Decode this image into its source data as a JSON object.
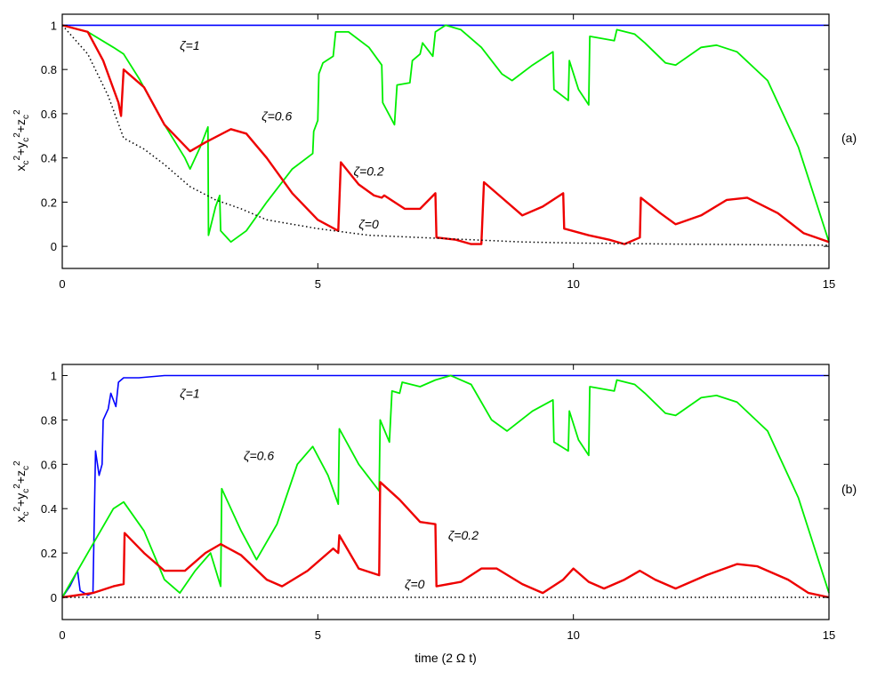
{
  "chart_data": [
    {
      "panel": "(a)",
      "type": "line",
      "xlabel": "",
      "ylabel": "x_c^2+y_c^2+z_c^2",
      "xlim": [
        0,
        15
      ],
      "ylim": [
        -0.1,
        1.05
      ],
      "xticks": [
        "0",
        "5",
        "10",
        "15"
      ],
      "yticks": [
        "0",
        "0.2",
        "0.4",
        "0.6",
        "0.8",
        "1"
      ],
      "grid": false,
      "series": [
        {
          "name": "ζ=1",
          "color": "#0000ff",
          "style": "solid",
          "points": [
            [
              0,
              1
            ],
            [
              15,
              1
            ]
          ]
        },
        {
          "name": "ζ=0.6",
          "color": "#00ee00",
          "style": "solid",
          "points": [
            [
              0,
              1
            ],
            [
              0.5,
              0.97
            ],
            [
              1,
              0.9
            ],
            [
              1.2,
              0.87
            ],
            [
              1.5,
              0.76
            ],
            [
              2,
              0.55
            ],
            [
              2.4,
              0.4
            ],
            [
              2.5,
              0.35
            ],
            [
              2.7,
              0.45
            ],
            [
              2.85,
              0.54
            ],
            [
              2.86,
              0.05
            ],
            [
              3.0,
              0.18
            ],
            [
              3.08,
              0.23
            ],
            [
              3.1,
              0.07
            ],
            [
              3.3,
              0.02
            ],
            [
              3.6,
              0.07
            ],
            [
              4,
              0.2
            ],
            [
              4.5,
              0.35
            ],
            [
              4.9,
              0.42
            ],
            [
              4.92,
              0.52
            ],
            [
              5.0,
              0.57
            ],
            [
              5.02,
              0.78
            ],
            [
              5.1,
              0.83
            ],
            [
              5.3,
              0.86
            ],
            [
              5.35,
              0.97
            ],
            [
              5.6,
              0.97
            ],
            [
              6.0,
              0.9
            ],
            [
              6.25,
              0.82
            ],
            [
              6.27,
              0.65
            ],
            [
              6.5,
              0.55
            ],
            [
              6.55,
              0.73
            ],
            [
              6.8,
              0.74
            ],
            [
              6.85,
              0.84
            ],
            [
              7.0,
              0.87
            ],
            [
              7.05,
              0.92
            ],
            [
              7.25,
              0.86
            ],
            [
              7.3,
              0.97
            ],
            [
              7.5,
              1.0
            ],
            [
              7.8,
              0.98
            ],
            [
              8.2,
              0.9
            ],
            [
              8.6,
              0.78
            ],
            [
              8.8,
              0.75
            ],
            [
              9.2,
              0.82
            ],
            [
              9.6,
              0.88
            ],
            [
              9.62,
              0.71
            ],
            [
              9.9,
              0.66
            ],
            [
              9.92,
              0.84
            ],
            [
              10.1,
              0.71
            ],
            [
              10.3,
              0.64
            ],
            [
              10.32,
              0.95
            ],
            [
              10.8,
              0.93
            ],
            [
              10.85,
              0.98
            ],
            [
              11.2,
              0.96
            ],
            [
              11.4,
              0.92
            ],
            [
              11.8,
              0.83
            ],
            [
              12.0,
              0.82
            ],
            [
              12.5,
              0.9
            ],
            [
              12.8,
              0.91
            ],
            [
              13.2,
              0.88
            ],
            [
              13.8,
              0.75
            ],
            [
              14.4,
              0.45
            ],
            [
              15,
              0.02
            ]
          ]
        },
        {
          "name": "ζ=0.2",
          "color": "#ee0000",
          "style": "solid",
          "points": [
            [
              0,
              1
            ],
            [
              0.5,
              0.97
            ],
            [
              0.8,
              0.84
            ],
            [
              1.1,
              0.65
            ],
            [
              1.15,
              0.59
            ],
            [
              1.2,
              0.8
            ],
            [
              1.6,
              0.72
            ],
            [
              2,
              0.55
            ],
            [
              2.5,
              0.43
            ],
            [
              2.8,
              0.47
            ],
            [
              3.3,
              0.53
            ],
            [
              3.6,
              0.51
            ],
            [
              4,
              0.4
            ],
            [
              4.5,
              0.24
            ],
            [
              5,
              0.12
            ],
            [
              5.4,
              0.07
            ],
            [
              5.45,
              0.38
            ],
            [
              5.8,
              0.28
            ],
            [
              6.1,
              0.23
            ],
            [
              6.25,
              0.22
            ],
            [
              6.3,
              0.23
            ],
            [
              6.7,
              0.17
            ],
            [
              7.0,
              0.17
            ],
            [
              7.3,
              0.24
            ],
            [
              7.32,
              0.04
            ],
            [
              7.7,
              0.03
            ],
            [
              8.0,
              0.01
            ],
            [
              8.2,
              0.01
            ],
            [
              8.25,
              0.29
            ],
            [
              8.6,
              0.22
            ],
            [
              9.0,
              0.14
            ],
            [
              9.4,
              0.18
            ],
            [
              9.8,
              0.24
            ],
            [
              9.82,
              0.08
            ],
            [
              10.3,
              0.05
            ],
            [
              10.7,
              0.03
            ],
            [
              11.0,
              0.01
            ],
            [
              11.3,
              0.04
            ],
            [
              11.32,
              0.22
            ],
            [
              11.7,
              0.15
            ],
            [
              12.0,
              0.1
            ],
            [
              12.5,
              0.14
            ],
            [
              13.0,
              0.21
            ],
            [
              13.4,
              0.22
            ],
            [
              14.0,
              0.15
            ],
            [
              14.5,
              0.06
            ],
            [
              15,
              0.02
            ]
          ]
        },
        {
          "name": "ζ=0",
          "color": "#000000",
          "style": "dotted",
          "points": [
            [
              0,
              1
            ],
            [
              0.5,
              0.87
            ],
            [
              0.9,
              0.68
            ],
            [
              1.2,
              0.49
            ],
            [
              1.6,
              0.44
            ],
            [
              2,
              0.37
            ],
            [
              2.5,
              0.27
            ],
            [
              3,
              0.21
            ],
            [
              3.5,
              0.17
            ],
            [
              4,
              0.12
            ],
            [
              5,
              0.08
            ],
            [
              6,
              0.05
            ],
            [
              7,
              0.04
            ],
            [
              8,
              0.03
            ],
            [
              9,
              0.02
            ],
            [
              10,
              0.015
            ],
            [
              12,
              0.01
            ],
            [
              15,
              0.005
            ]
          ]
        }
      ],
      "annotations": [
        {
          "text": "ζ=1",
          "x": 2.3,
          "y": 0.89
        },
        {
          "text": "ζ=0.6",
          "x": 3.9,
          "y": 0.57
        },
        {
          "text": "ζ=0.2",
          "x": 5.7,
          "y": 0.32
        },
        {
          "text": "ζ=0",
          "x": 5.8,
          "y": 0.08
        }
      ]
    },
    {
      "panel": "(b)",
      "type": "line",
      "xlabel": "time (2 Ω t)",
      "ylabel": "x_c^2+y_c^2+z_c^2",
      "xlim": [
        0,
        15
      ],
      "ylim": [
        -0.1,
        1.05
      ],
      "xticks": [
        "0",
        "5",
        "10",
        "15"
      ],
      "yticks": [
        "0",
        "0.2",
        "0.4",
        "0.6",
        "0.8",
        "1"
      ],
      "grid": false,
      "series": [
        {
          "name": "ζ=1",
          "color": "#0000ff",
          "style": "solid",
          "points": [
            [
              0,
              0
            ],
            [
              0.15,
              0.05
            ],
            [
              0.3,
              0.12
            ],
            [
              0.35,
              0.03
            ],
            [
              0.5,
              0.01
            ],
            [
              0.6,
              0.02
            ],
            [
              0.65,
              0.66
            ],
            [
              0.72,
              0.55
            ],
            [
              0.78,
              0.6
            ],
            [
              0.8,
              0.8
            ],
            [
              0.9,
              0.85
            ],
            [
              0.95,
              0.92
            ],
            [
              1.05,
              0.86
            ],
            [
              1.1,
              0.97
            ],
            [
              1.2,
              0.99
            ],
            [
              1.5,
              0.99
            ],
            [
              2,
              1.0
            ],
            [
              4,
              1.0
            ],
            [
              6,
              1.0
            ],
            [
              10,
              1.0
            ],
            [
              15,
              1.0
            ]
          ]
        },
        {
          "name": "ζ=0.6",
          "color": "#00ee00",
          "style": "solid",
          "points": [
            [
              0,
              0
            ],
            [
              0.5,
              0.2
            ],
            [
              1,
              0.4
            ],
            [
              1.2,
              0.43
            ],
            [
              1.6,
              0.3
            ],
            [
              2.0,
              0.08
            ],
            [
              2.3,
              0.02
            ],
            [
              2.6,
              0.12
            ],
            [
              2.9,
              0.2
            ],
            [
              3.1,
              0.05
            ],
            [
              3.12,
              0.49
            ],
            [
              3.5,
              0.3
            ],
            [
              3.8,
              0.17
            ],
            [
              4.2,
              0.33
            ],
            [
              4.6,
              0.6
            ],
            [
              4.9,
              0.68
            ],
            [
              5.2,
              0.55
            ],
            [
              5.4,
              0.42
            ],
            [
              5.42,
              0.76
            ],
            [
              5.8,
              0.6
            ],
            [
              6.2,
              0.48
            ],
            [
              6.22,
              0.8
            ],
            [
              6.4,
              0.7
            ],
            [
              6.45,
              0.93
            ],
            [
              6.6,
              0.92
            ],
            [
              6.65,
              0.97
            ],
            [
              7.0,
              0.95
            ],
            [
              7.3,
              0.98
            ],
            [
              7.6,
              1.0
            ],
            [
              8.0,
              0.96
            ],
            [
              8.4,
              0.8
            ],
            [
              8.7,
              0.75
            ],
            [
              9.2,
              0.84
            ],
            [
              9.6,
              0.89
            ],
            [
              9.62,
              0.7
            ],
            [
              9.9,
              0.66
            ],
            [
              9.92,
              0.84
            ],
            [
              10.1,
              0.71
            ],
            [
              10.3,
              0.64
            ],
            [
              10.32,
              0.95
            ],
            [
              10.8,
              0.93
            ],
            [
              10.85,
              0.98
            ],
            [
              11.2,
              0.96
            ],
            [
              11.4,
              0.92
            ],
            [
              11.8,
              0.83
            ],
            [
              12.0,
              0.82
            ],
            [
              12.5,
              0.9
            ],
            [
              12.8,
              0.91
            ],
            [
              13.2,
              0.88
            ],
            [
              13.8,
              0.75
            ],
            [
              14.4,
              0.45
            ],
            [
              15,
              0.02
            ]
          ]
        },
        {
          "name": "ζ=0.2",
          "color": "#ee0000",
          "style": "solid",
          "points": [
            [
              0,
              0
            ],
            [
              0.6,
              0.02
            ],
            [
              1.0,
              0.05
            ],
            [
              1.2,
              0.06
            ],
            [
              1.22,
              0.29
            ],
            [
              1.6,
              0.2
            ],
            [
              2.0,
              0.12
            ],
            [
              2.4,
              0.12
            ],
            [
              2.8,
              0.2
            ],
            [
              3.1,
              0.24
            ],
            [
              3.5,
              0.19
            ],
            [
              4.0,
              0.08
            ],
            [
              4.3,
              0.05
            ],
            [
              4.8,
              0.12
            ],
            [
              5.3,
              0.22
            ],
            [
              5.4,
              0.2
            ],
            [
              5.42,
              0.28
            ],
            [
              5.8,
              0.13
            ],
            [
              6.2,
              0.1
            ],
            [
              6.22,
              0.52
            ],
            [
              6.6,
              0.44
            ],
            [
              7.0,
              0.34
            ],
            [
              7.3,
              0.33
            ],
            [
              7.32,
              0.05
            ],
            [
              7.8,
              0.07
            ],
            [
              8.2,
              0.13
            ],
            [
              8.5,
              0.13
            ],
            [
              9.0,
              0.06
            ],
            [
              9.4,
              0.02
            ],
            [
              9.8,
              0.08
            ],
            [
              10.0,
              0.13
            ],
            [
              10.3,
              0.07
            ],
            [
              10.6,
              0.04
            ],
            [
              11.0,
              0.08
            ],
            [
              11.3,
              0.12
            ],
            [
              11.6,
              0.08
            ],
            [
              12.0,
              0.04
            ],
            [
              12.6,
              0.1
            ],
            [
              13.2,
              0.15
            ],
            [
              13.6,
              0.14
            ],
            [
              14.2,
              0.08
            ],
            [
              14.6,
              0.02
            ],
            [
              15,
              0.0
            ]
          ]
        },
        {
          "name": "ζ=0",
          "color": "#000000",
          "style": "dotted",
          "points": [
            [
              0,
              0
            ],
            [
              15,
              0
            ]
          ]
        }
      ],
      "annotations": [
        {
          "text": "ζ=1",
          "x": 2.3,
          "y": 0.9
        },
        {
          "text": "ζ=0.6",
          "x": 3.55,
          "y": 0.62
        },
        {
          "text": "ζ=0.2",
          "x": 7.55,
          "y": 0.26
        },
        {
          "text": "ζ=0",
          "x": 6.7,
          "y": 0.04
        }
      ]
    }
  ]
}
